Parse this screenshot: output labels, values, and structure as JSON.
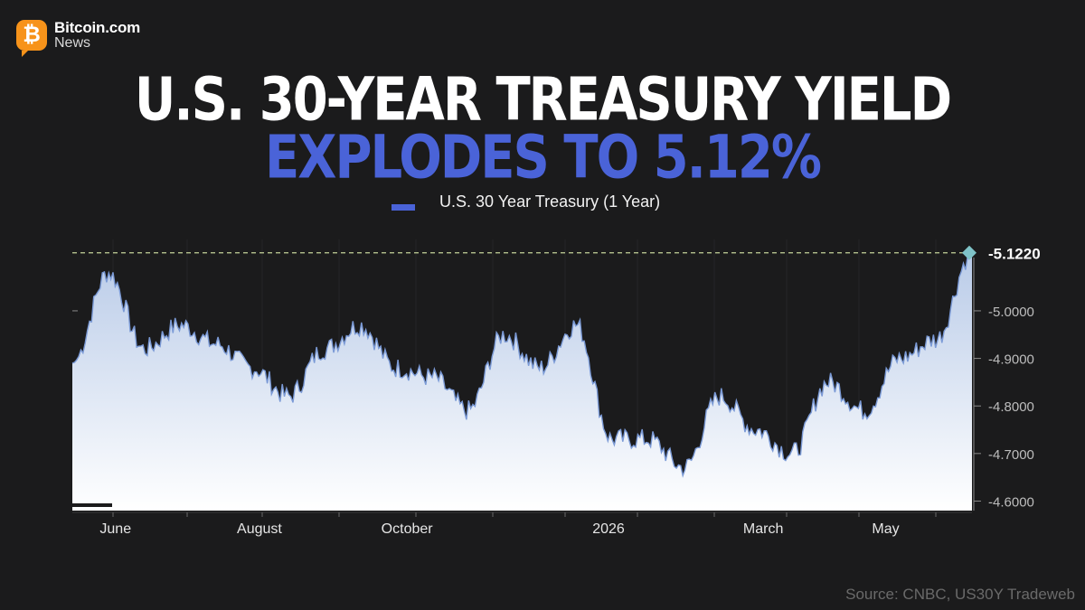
{
  "brand": {
    "name": "Bitcoin.com",
    "sub": "News",
    "logo_glyph": "₿",
    "accent": "#f7931a"
  },
  "headline": {
    "line1": "U.S. 30-YEAR TREASURY YIELD",
    "line2": "EXPLODES TO 5.12%",
    "line2_color": "#4a63d8"
  },
  "legend": {
    "label": "U.S. 30 Year Treasury (1 Year)",
    "color": "#4a63d8"
  },
  "source": "Source: CNBC, US30Y Tradeweb",
  "chart_data": {
    "type": "area",
    "series": [
      {
        "name": "U.S. 30 Year Treasury (1 Year)",
        "x": [
          0,
          0.5,
          1,
          1.5,
          2,
          2.5,
          3,
          3.5,
          4,
          4.5,
          5,
          5.5,
          6,
          6.5,
          7,
          7.5,
          8,
          8.5,
          9,
          9.5,
          10,
          10.5,
          11,
          11.5,
          12,
          12.5
        ],
        "values": [
          4.89,
          5.08,
          4.92,
          4.97,
          4.93,
          4.88,
          4.82,
          4.92,
          4.97,
          4.88,
          4.86,
          4.79,
          4.95,
          4.88,
          4.97,
          4.73,
          4.73,
          4.67,
          4.82,
          4.75,
          4.7,
          4.85,
          4.79,
          4.9,
          4.94,
          5.122
        ]
      }
    ],
    "ylim": [
      4.58,
      5.15
    ],
    "yticks": [
      "-5.0000",
      "-4.9000",
      "-4.8000",
      "-4.7000",
      "-4.6000"
    ],
    "ytick_values": [
      5.0,
      4.9,
      4.8,
      4.7,
      4.6
    ],
    "xticks": [
      "June",
      "August",
      "October",
      "2026",
      "March",
      "May"
    ],
    "xtick_positions": [
      0.6,
      2.6,
      4.65,
      7.45,
      9.6,
      11.3
    ],
    "last_value_label": "-5.1220",
    "last_value": 5.122,
    "grid": true,
    "colors": {
      "line": "#7b9ad6",
      "fill_top": "#b9cbe8",
      "fill_bottom": "#ffffff",
      "reference": "#c5d49a",
      "marker": "#7fc3c8"
    }
  }
}
